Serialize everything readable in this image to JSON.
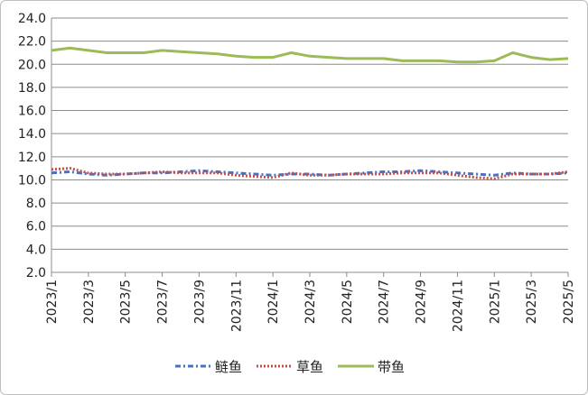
{
  "chart_data": {
    "type": "line",
    "title": "",
    "xlabel": "",
    "ylabel": "",
    "ylim": [
      2.0,
      24.0
    ],
    "y_ticks": [
      "2.0",
      "4.0",
      "6.0",
      "8.0",
      "10.0",
      "12.0",
      "14.0",
      "16.0",
      "18.0",
      "20.0",
      "22.0",
      "24.0"
    ],
    "x_ticks": [
      "2023/1",
      "2023/3",
      "2023/5",
      "2023/7",
      "2023/9",
      "2023/11",
      "2024/1",
      "2024/3",
      "2024/5",
      "2024/7",
      "2024/9",
      "2024/11",
      "2025/1",
      "2025/3",
      "2025/5"
    ],
    "x_range": [
      "2023-01",
      "2025-05"
    ],
    "grid": "horizontal",
    "legend_position": "bottom",
    "x": [
      "2023-01",
      "2023-02",
      "2023-03",
      "2023-04",
      "2023-05",
      "2023-06",
      "2023-07",
      "2023-08",
      "2023-09",
      "2023-10",
      "2023-11",
      "2023-12",
      "2024-01",
      "2024-02",
      "2024-03",
      "2024-04",
      "2024-05",
      "2024-06",
      "2024-07",
      "2024-08",
      "2024-09",
      "2024-10",
      "2024-11",
      "2024-12",
      "2025-01",
      "2025-02",
      "2025-03",
      "2025-04",
      "2025-05"
    ],
    "series": [
      {
        "name": "鲢鱼",
        "color": "#4472c4",
        "style": "dash-dot",
        "values": [
          10.6,
          10.7,
          10.5,
          10.4,
          10.5,
          10.6,
          10.6,
          10.7,
          10.8,
          10.7,
          10.6,
          10.5,
          10.4,
          10.5,
          10.5,
          10.4,
          10.5,
          10.6,
          10.7,
          10.7,
          10.8,
          10.7,
          10.6,
          10.5,
          10.4,
          10.6,
          10.5,
          10.5,
          10.6
        ]
      },
      {
        "name": "草鱼",
        "color": "#c0504d",
        "style": "dotted",
        "values": [
          10.9,
          11.0,
          10.6,
          10.5,
          10.5,
          10.6,
          10.7,
          10.6,
          10.6,
          10.6,
          10.4,
          10.3,
          10.2,
          10.6,
          10.4,
          10.4,
          10.5,
          10.5,
          10.5,
          10.6,
          10.6,
          10.6,
          10.4,
          10.2,
          10.1,
          10.5,
          10.5,
          10.5,
          10.7
        ]
      },
      {
        "name": "带鱼",
        "color": "#9bbb59",
        "style": "solid",
        "values": [
          21.2,
          21.4,
          21.2,
          21.0,
          21.0,
          21.0,
          21.2,
          21.1,
          21.0,
          20.9,
          20.7,
          20.6,
          20.6,
          21.0,
          20.7,
          20.6,
          20.5,
          20.5,
          20.5,
          20.3,
          20.3,
          20.3,
          20.2,
          20.2,
          20.3,
          21.0,
          20.6,
          20.4,
          20.5
        ]
      }
    ]
  }
}
